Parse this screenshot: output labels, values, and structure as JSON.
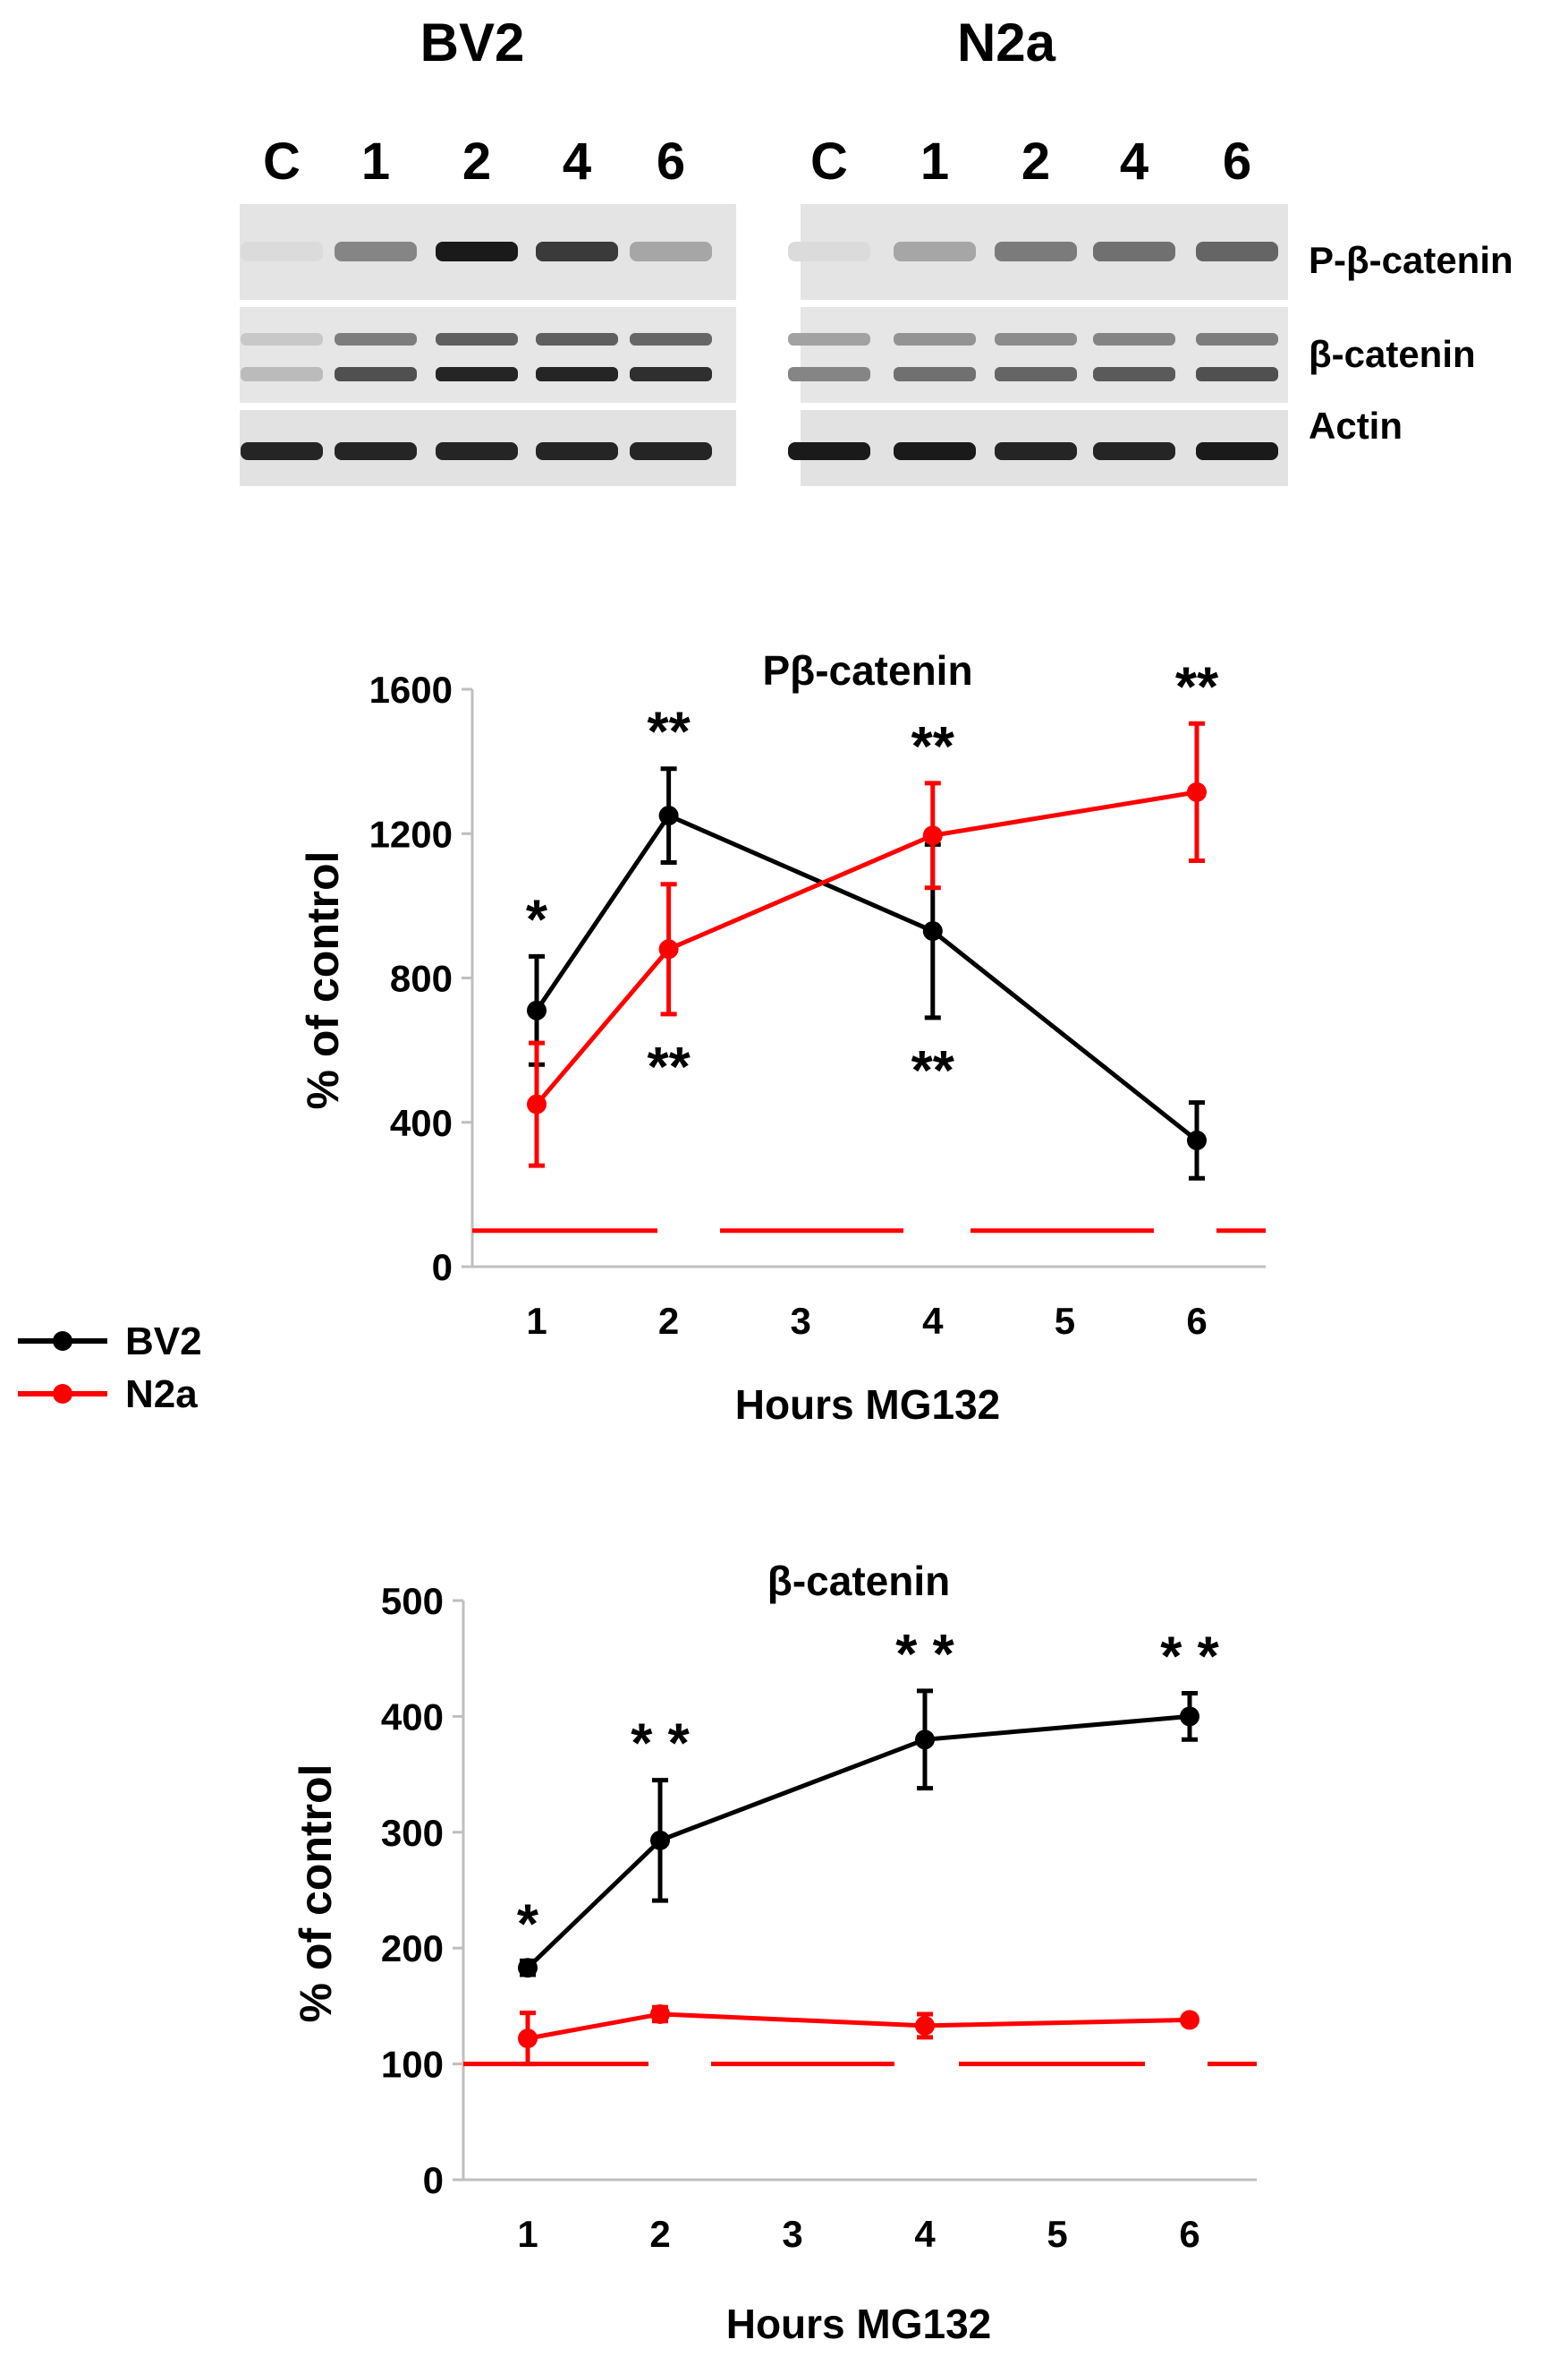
{
  "blots": {
    "panels": [
      {
        "title": "BV2",
        "lanes": [
          "C",
          "1",
          "2",
          "4",
          "6"
        ],
        "band_intensity": {
          "p_beta_catenin": [
            0.05,
            0.45,
            0.95,
            0.8,
            0.3
          ],
          "beta_catenin": [
            0.2,
            0.7,
            0.9,
            0.9,
            0.85
          ],
          "actin": [
            0.9,
            0.9,
            0.9,
            0.9,
            0.9
          ]
        }
      },
      {
        "title": "N2a",
        "lanes": [
          "C",
          "1",
          "2",
          "4",
          "6"
        ],
        "band_intensity": {
          "p_beta_catenin": [
            0.05,
            0.3,
            0.5,
            0.55,
            0.6
          ],
          "beta_catenin": [
            0.45,
            0.55,
            0.6,
            0.65,
            0.7
          ],
          "actin": [
            0.95,
            0.95,
            0.9,
            0.9,
            0.95
          ]
        }
      }
    ],
    "row_labels": [
      "P-β-catenin",
      "β-catenin",
      "Actin"
    ]
  },
  "legend": {
    "items": [
      {
        "label": "BV2",
        "color": "#000000"
      },
      {
        "label": "N2a",
        "color": "#ff0000"
      }
    ]
  },
  "colors": {
    "bv2": "#000000",
    "n2a": "#ff0000",
    "axis": "#bfbfbf"
  },
  "chart_data": [
    {
      "type": "line",
      "title": "Pβ-catenin",
      "xlabel": "Hours MG132",
      "ylabel": "% of control",
      "x_ticks": [
        "1",
        "2",
        "3",
        "4",
        "5",
        "6"
      ],
      "y_ticks": [
        "0",
        "400",
        "800",
        "1200",
        "1600"
      ],
      "ylim": [
        0,
        1600
      ],
      "series": [
        {
          "name": "BV2",
          "color": "#000000",
          "x": [
            1,
            2,
            4,
            6
          ],
          "values": [
            710,
            1250,
            930,
            350
          ],
          "errors": [
            150,
            130,
            240,
            105
          ]
        },
        {
          "name": "N2a",
          "color": "#ff0000",
          "x": [
            1,
            2,
            4,
            6
          ],
          "values": [
            450,
            880,
            1195,
            1315
          ],
          "errors": [
            170,
            180,
            145,
            190
          ]
        }
      ],
      "control_line": 100,
      "significance": [
        {
          "x": 1,
          "text": "*",
          "color": "#000000",
          "position": "above",
          "series": "BV2"
        },
        {
          "x": 2,
          "text": "**",
          "color": "#000000",
          "position": "above",
          "series": "BV2"
        },
        {
          "x": 2,
          "text": "**",
          "color": "#ff0000",
          "position": "below",
          "series": "N2a"
        },
        {
          "x": 4,
          "text": "**",
          "color": "#ff0000",
          "position": "above",
          "series": "N2a"
        },
        {
          "x": 4,
          "text": "**",
          "color": "#000000",
          "position": "below",
          "series": "BV2"
        },
        {
          "x": 6,
          "text": "**",
          "color": "#ff0000",
          "position": "above",
          "series": "N2a"
        }
      ]
    },
    {
      "type": "line",
      "title": "β-catenin",
      "xlabel": "Hours MG132",
      "ylabel": "% of control",
      "x_ticks": [
        "1",
        "2",
        "3",
        "4",
        "5",
        "6"
      ],
      "y_ticks": [
        "0",
        "100",
        "200",
        "300",
        "400",
        "500"
      ],
      "ylim": [
        0,
        500
      ],
      "series": [
        {
          "name": "BV2",
          "color": "#000000",
          "x": [
            1,
            2,
            4,
            6
          ],
          "values": [
            183,
            293,
            380,
            400
          ],
          "errors": [
            6,
            52,
            42,
            20
          ]
        },
        {
          "name": "N2a",
          "color": "#ff0000",
          "x": [
            1,
            2,
            4,
            6
          ],
          "values": [
            122,
            143,
            133,
            138
          ],
          "errors": [
            22,
            6,
            10,
            3
          ]
        }
      ],
      "control_line": 100,
      "significance": [
        {
          "x": 1,
          "text": "*",
          "color": "#000000",
          "position": "above",
          "series": "BV2"
        },
        {
          "x": 2,
          "text": "* *",
          "color": "#000000",
          "position": "above",
          "series": "BV2"
        },
        {
          "x": 4,
          "text": "* *",
          "color": "#000000",
          "position": "above",
          "series": "BV2"
        },
        {
          "x": 6,
          "text": "* *",
          "color": "#000000",
          "position": "above",
          "series": "BV2"
        }
      ]
    }
  ]
}
